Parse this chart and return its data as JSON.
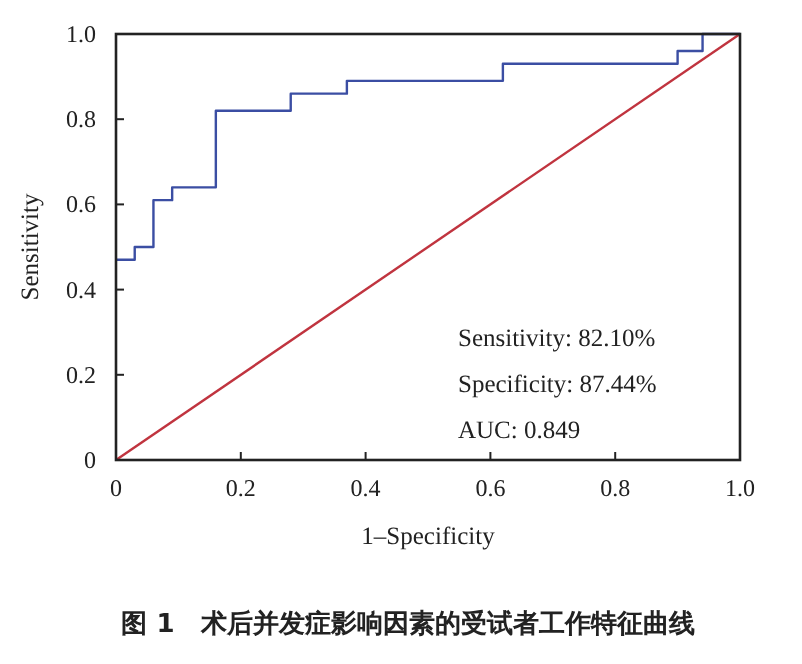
{
  "chart_data": {
    "type": "step",
    "title": "图 1　术后并发症影响因素的受试者工作特征曲线",
    "xlabel": "1–Specificity",
    "ylabel": "Sensitivity",
    "xlim": [
      0,
      1
    ],
    "ylim": [
      0,
      1
    ],
    "xticks": [
      0,
      0.2,
      0.4,
      0.6,
      0.8,
      {
        "value": 1,
        "label": "1.0"
      }
    ],
    "yticks": [
      0,
      0.2,
      0.4,
      0.6,
      0.8,
      {
        "value": 1,
        "label": "1.0"
      }
    ],
    "series": [
      {
        "color": "#3b4ea3",
        "x": [
          0,
          0.03,
          0.06,
          0.09,
          0.16,
          0.28,
          0.37,
          0.62,
          0.9,
          0.94,
          1
        ],
        "values": [
          0.47,
          0.5,
          0.61,
          0.64,
          0.82,
          0.86,
          0.89,
          0.93,
          0.96,
          1,
          1
        ]
      },
      {
        "type": "line",
        "color": "#c0343f",
        "x": [
          0,
          1
        ],
        "values": [
          0,
          1
        ]
      }
    ],
    "annotations": [
      "Sensitivity: 82.10%",
      "Specificity: 87.44%",
      "AUC: 0.849"
    ]
  }
}
